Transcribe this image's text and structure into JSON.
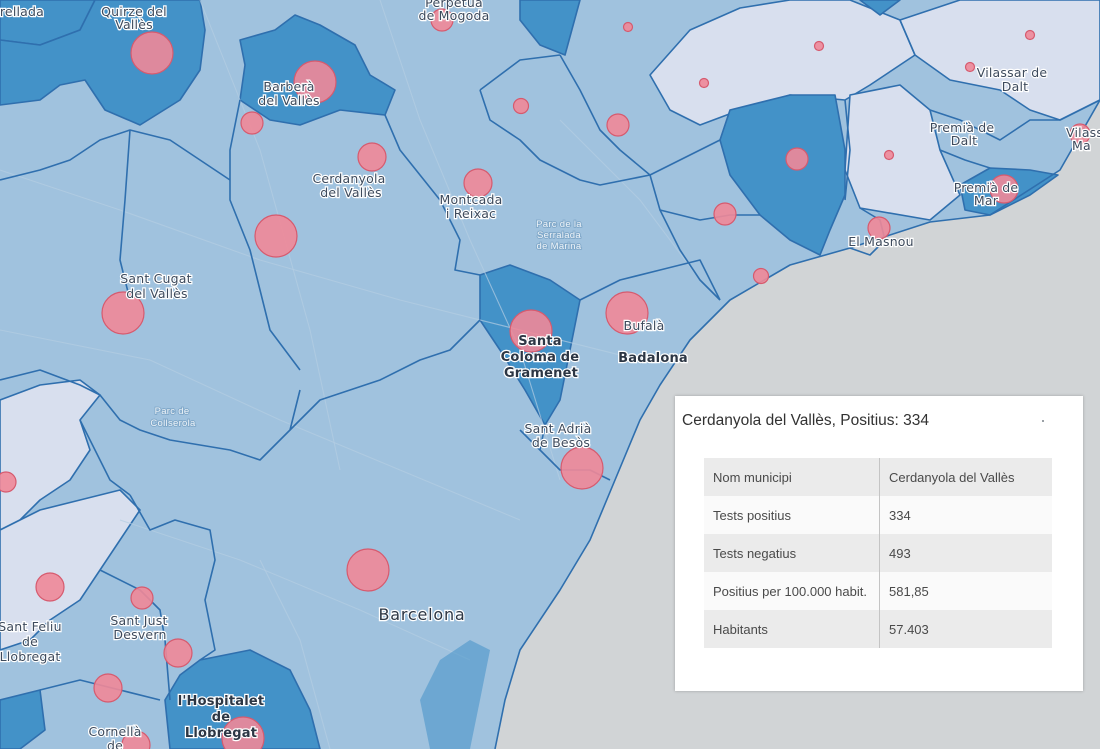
{
  "map": {
    "colors": {
      "sea": "#d1d4d6",
      "land_mid": "#a0c2de",
      "land_dark": "#4392c8",
      "land_light": "#d8dfee",
      "border": "#2f6fae",
      "circle_fill": "#f08898",
      "circle_stroke": "#d65a6e"
    },
    "labels": {
      "sabadell": "arellada",
      "quirze_1": "Quirze del",
      "quirze_2": "Vallès",
      "perpetua_1": "Perpetua",
      "perpetua_2": "de Mogoda",
      "barbera_1": "Barberà",
      "barbera_2": "del Vallès",
      "vilassar_1": "Vilassar de",
      "vilassar_2": "Dalt",
      "premia_dalt_1": "Premià de",
      "premia_dalt_2": "Dalt",
      "premia_mar_1": "Premià de",
      "premia_mar_2": "Mar",
      "vilassar_mar_1": "Vilassa",
      "vilassar_mar_2": "Ma",
      "cerdanyola_1": "Cerdanyola",
      "cerdanyola_2": "del Vallès",
      "montcada_1": "Montcada",
      "montcada_2": "i Reixac",
      "serralada_1": "Parc de la",
      "serralada_2": "Serralada",
      "serralada_3": "de Marina",
      "masnou": "El Masnou",
      "santcugat_1": "Sant Cugat",
      "santcugat_2": "del Vallès",
      "bufala": "Bufalà",
      "badalona": "Badalona",
      "santacoloma_1": "Santa",
      "santacoloma_2": "Coloma de",
      "santacoloma_3": "Gramenet",
      "collserola_1": "Parc de",
      "collserola_2": "Collserola",
      "santadria_1": "Sant Adrià",
      "santadria_2": "de Besòs",
      "barcelona": "Barcelona",
      "santjust_1": "Sant Just",
      "santjust_2": "Desvern",
      "santfeliu_1": "Sant Feliu",
      "santfeliu_2": "de",
      "santfeliu_3": "Llobregat",
      "hospitalet_1": "l'Hospitalet",
      "hospitalet_2": "de",
      "hospitalet_3": "Llobregat",
      "cornella_1": "Cornellà",
      "cornella_2": "de"
    }
  },
  "popup": {
    "title": "Cerdanyola del Vallès, Positius: 334",
    "rows": [
      {
        "key": "Nom municipi",
        "value": "Cerdanyola del Vallès"
      },
      {
        "key": "Tests positius",
        "value": "334"
      },
      {
        "key": "Tests negatius",
        "value": "493"
      },
      {
        "key": "Positius per 100.000 habit.",
        "value": "581,85"
      },
      {
        "key": "Habitants",
        "value": "57.403"
      }
    ]
  }
}
